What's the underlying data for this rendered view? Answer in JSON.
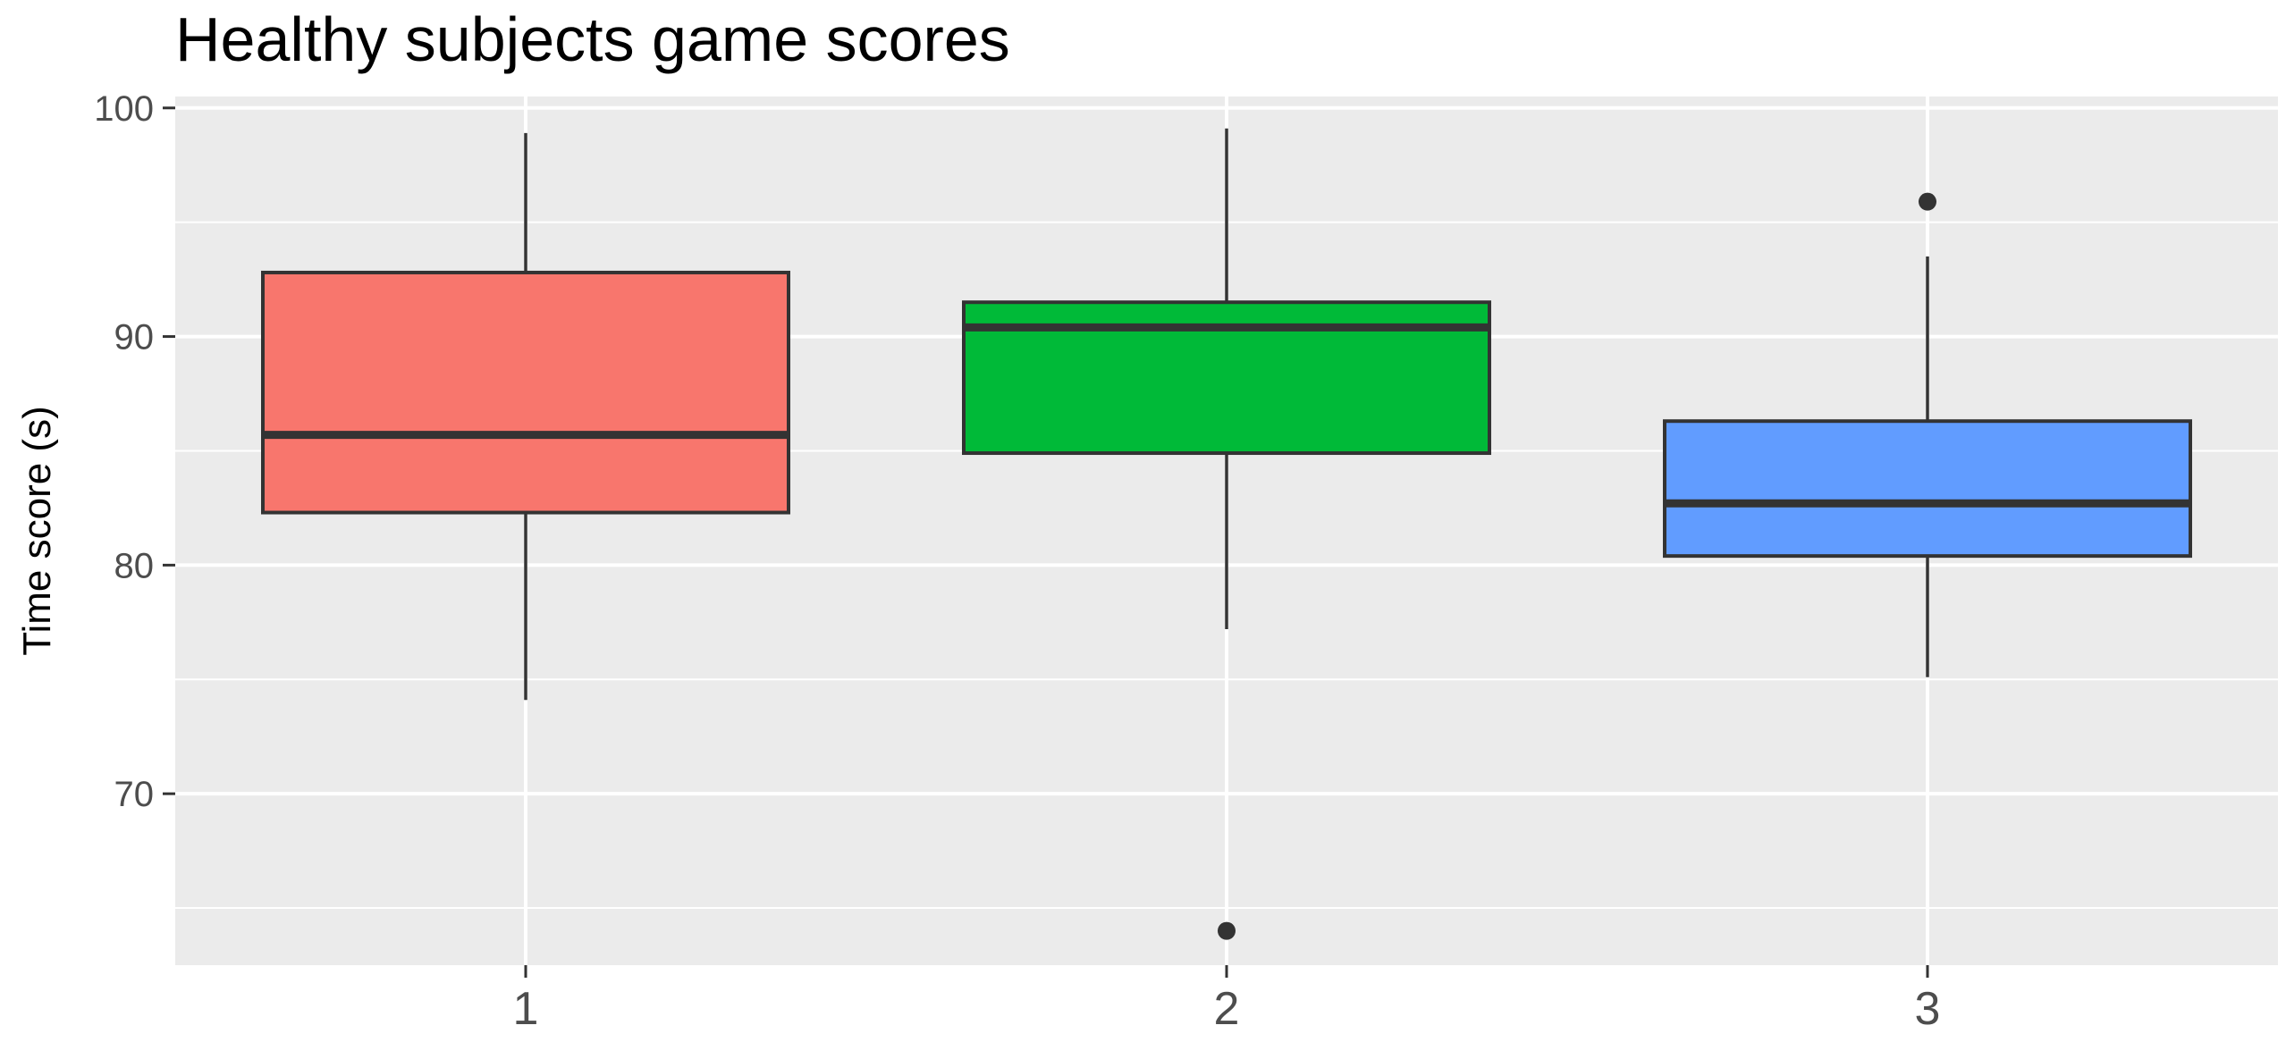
{
  "chart_data": {
    "type": "boxplot",
    "title": "Healthy subjects game scores",
    "xlabel": "",
    "ylabel": "Time score (s)",
    "ylim": [
      62.5,
      100.5
    ],
    "yticks": [
      70,
      80,
      90,
      100
    ],
    "grid": true,
    "legend": "none",
    "categories": [
      "1",
      "2",
      "3"
    ],
    "boxes": [
      {
        "category": "1",
        "color": "#F8766D",
        "min": 74.1,
        "q1": 82.3,
        "median": 85.7,
        "q3": 92.8,
        "max": 98.9,
        "outliers": []
      },
      {
        "category": "2",
        "color": "#00BA38",
        "min": 77.2,
        "q1": 84.9,
        "median": 90.4,
        "q3": 91.5,
        "max": 99.1,
        "outliers": [
          64.0
        ]
      },
      {
        "category": "3",
        "color": "#619CFF",
        "min": 75.1,
        "q1": 80.4,
        "median": 82.7,
        "q3": 86.3,
        "max": 93.5,
        "outliers": [
          95.9
        ]
      }
    ],
    "colors": {
      "panel": "#EBEBEB",
      "grid": "#FFFFFF",
      "outline": "#333333",
      "ticklabel": "#4D4D4D"
    }
  }
}
